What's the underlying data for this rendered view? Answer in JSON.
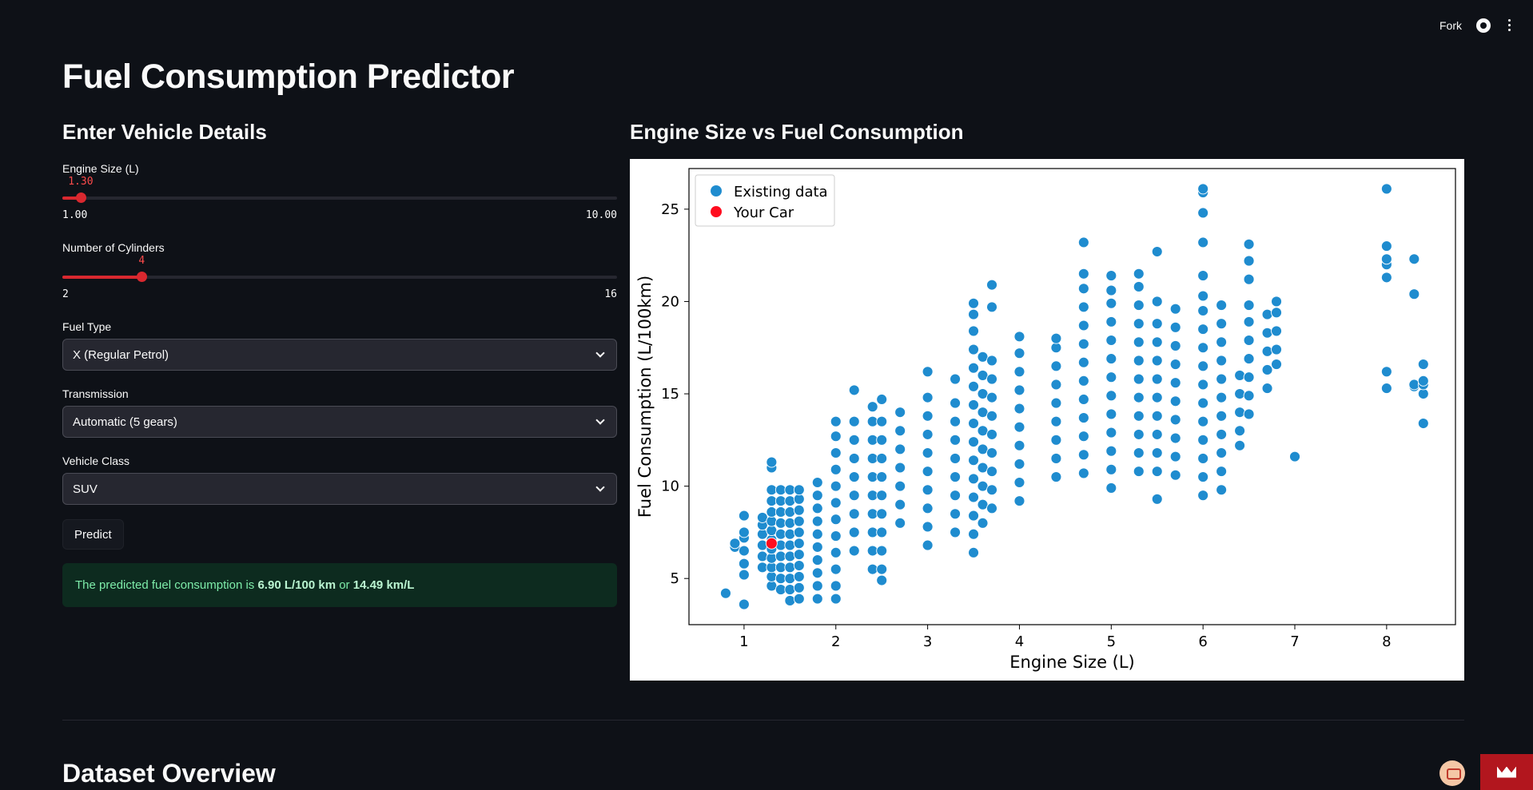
{
  "header": {
    "fork_label": "Fork",
    "github_icon": "github-icon",
    "menu_icon": "kebab-menu-icon"
  },
  "page": {
    "title": "Fuel Consumption Predictor",
    "left_heading": "Enter Vehicle Details",
    "right_heading": "Engine Size vs Fuel Consumption",
    "bottom_heading": "Dataset Overview"
  },
  "form": {
    "engine_size": {
      "label": "Engine Size (L)",
      "value": "1.30",
      "min": "1.00",
      "max": "10.00",
      "fraction": 0.033
    },
    "cylinders": {
      "label": "Number of Cylinders",
      "value": "4",
      "min": "2",
      "max": "16",
      "fraction": 0.143
    },
    "fuel_type": {
      "label": "Fuel Type",
      "value": "X (Regular Petrol)"
    },
    "transmission": {
      "label": "Transmission",
      "value": "Automatic (5 gears)"
    },
    "vehicle_class": {
      "label": "Vehicle Class",
      "value": "SUV"
    },
    "predict_label": "Predict"
  },
  "result": {
    "prefix": "The predicted fuel consumption is ",
    "l100km": "6.90 L/100 km",
    "middle": " or ",
    "kml": "14.49 km/L"
  },
  "colors": {
    "accent": "#d9282f",
    "existing": "#1f8ccf",
    "your_car": "#ff0d1f"
  },
  "chart_data": {
    "type": "scatter",
    "title": "",
    "xlabel": "Engine Size (L)",
    "ylabel": "Fuel Consumption (L/100km)",
    "xlim": [
      0.4,
      8.75
    ],
    "ylim": [
      2.5,
      27.2
    ],
    "xticks": [
      1,
      2,
      3,
      4,
      5,
      6,
      7,
      8
    ],
    "yticks": [
      5,
      10,
      15,
      20,
      25
    ],
    "legend_position": "top-left",
    "series": [
      {
        "name": "Existing data",
        "color": "#1f8ccf",
        "clusters": [
          {
            "x": 0.8,
            "y": [
              4.2
            ]
          },
          {
            "x": 0.9,
            "y": [
              6.7,
              6.9
            ]
          },
          {
            "x": 1.0,
            "y": [
              3.6,
              5.2,
              5.8,
              6.5,
              7.2,
              7.5,
              8.4
            ]
          },
          {
            "x": 1.2,
            "y": [
              5.6,
              6.2,
              6.8,
              7.4,
              7.9,
              8.3
            ]
          },
          {
            "x": 1.3,
            "y": [
              4.6,
              5.1,
              5.6,
              6.1,
              6.6,
              7.1,
              7.6,
              8.1,
              8.6,
              9.2,
              9.8,
              11.0,
              11.3
            ]
          },
          {
            "x": 1.4,
            "y": [
              4.4,
              5.0,
              5.6,
              6.2,
              6.8,
              7.4,
              8.0,
              8.6,
              9.2,
              9.8
            ]
          },
          {
            "x": 1.5,
            "y": [
              3.8,
              4.4,
              5.0,
              5.6,
              6.2,
              6.8,
              7.4,
              8.0,
              8.6,
              9.2,
              9.8
            ]
          },
          {
            "x": 1.6,
            "y": [
              3.9,
              4.5,
              5.1,
              5.7,
              6.3,
              6.9,
              7.5,
              8.1,
              8.7,
              9.3,
              9.8
            ]
          },
          {
            "x": 1.8,
            "y": [
              3.9,
              4.6,
              5.3,
              6.0,
              6.7,
              7.4,
              8.1,
              8.8,
              9.5,
              10.2
            ]
          },
          {
            "x": 2.0,
            "y": [
              3.9,
              4.6,
              5.5,
              6.4,
              7.3,
              8.2,
              9.1,
              10.0,
              10.9,
              11.8,
              12.7,
              13.5
            ]
          },
          {
            "x": 2.2,
            "y": [
              6.5,
              7.5,
              8.5,
              9.5,
              10.5,
              11.5,
              12.5,
              13.5,
              15.2
            ]
          },
          {
            "x": 2.4,
            "y": [
              5.5,
              6.5,
              7.5,
              8.5,
              9.5,
              10.5,
              11.5,
              12.5,
              13.5,
              14.3
            ]
          },
          {
            "x": 2.5,
            "y": [
              4.9,
              5.5,
              6.5,
              7.5,
              8.5,
              9.5,
              10.5,
              11.5,
              12.5,
              13.5,
              14.7
            ]
          },
          {
            "x": 2.7,
            "y": [
              8.0,
              9.0,
              10.0,
              11.0,
              12.0,
              13.0,
              14.0
            ]
          },
          {
            "x": 3.0,
            "y": [
              6.8,
              7.8,
              8.8,
              9.8,
              10.8,
              11.8,
              12.8,
              13.8,
              14.8,
              16.2
            ]
          },
          {
            "x": 3.3,
            "y": [
              7.5,
              8.5,
              9.5,
              10.5,
              11.5,
              12.5,
              13.5,
              14.5,
              15.8
            ]
          },
          {
            "x": 3.5,
            "y": [
              6.4,
              7.4,
              8.4,
              9.4,
              10.4,
              11.4,
              12.4,
              13.4,
              14.4,
              15.4,
              16.4,
              17.4,
              18.4,
              19.3,
              19.9
            ]
          },
          {
            "x": 3.6,
            "y": [
              8.0,
              9.0,
              10.0,
              11.0,
              12.0,
              13.0,
              14.0,
              15.0,
              16.0,
              17.0
            ]
          },
          {
            "x": 3.7,
            "y": [
              8.8,
              9.8,
              10.8,
              11.8,
              12.8,
              13.8,
              14.8,
              15.8,
              16.8,
              19.7,
              20.9
            ]
          },
          {
            "x": 4.0,
            "y": [
              9.2,
              10.2,
              11.2,
              12.2,
              13.2,
              14.2,
              15.2,
              16.2,
              17.2,
              18.1
            ]
          },
          {
            "x": 4.4,
            "y": [
              10.5,
              11.5,
              12.5,
              13.5,
              14.5,
              15.5,
              16.5,
              17.5,
              18.0
            ]
          },
          {
            "x": 4.7,
            "y": [
              10.7,
              11.7,
              12.7,
              13.7,
              14.7,
              15.7,
              16.7,
              17.7,
              18.7,
              19.7,
              20.7,
              21.5,
              23.2
            ]
          },
          {
            "x": 5.0,
            "y": [
              9.9,
              10.9,
              11.9,
              12.9,
              13.9,
              14.9,
              15.9,
              16.9,
              17.9,
              18.9,
              19.9,
              20.6,
              21.4
            ]
          },
          {
            "x": 5.3,
            "y": [
              10.8,
              11.8,
              12.8,
              13.8,
              14.8,
              15.8,
              16.8,
              17.8,
              18.8,
              19.8,
              20.8,
              21.5
            ]
          },
          {
            "x": 5.5,
            "y": [
              9.3,
              10.8,
              11.8,
              12.8,
              13.8,
              14.8,
              15.8,
              16.8,
              17.8,
              18.8,
              20.0,
              22.7
            ]
          },
          {
            "x": 5.7,
            "y": [
              10.6,
              11.6,
              12.6,
              13.6,
              14.6,
              15.6,
              16.6,
              17.6,
              18.6,
              19.6
            ]
          },
          {
            "x": 6.0,
            "y": [
              9.5,
              10.5,
              11.5,
              12.5,
              13.5,
              14.5,
              15.5,
              16.5,
              17.5,
              18.5,
              19.5,
              20.3,
              21.4,
              23.2,
              24.8,
              25.9,
              26.1
            ]
          },
          {
            "x": 6.2,
            "y": [
              9.8,
              10.8,
              11.8,
              12.8,
              13.8,
              14.8,
              15.8,
              16.8,
              17.8,
              18.8,
              19.8
            ]
          },
          {
            "x": 6.4,
            "y": [
              12.2,
              13.0,
              14.0,
              15.0,
              16.0
            ]
          },
          {
            "x": 6.5,
            "y": [
              13.9,
              14.9,
              15.9,
              16.9,
              17.9,
              18.9,
              19.8,
              21.2,
              22.2,
              23.1
            ]
          },
          {
            "x": 6.7,
            "y": [
              15.3,
              16.3,
              17.3,
              18.3,
              19.3
            ]
          },
          {
            "x": 6.8,
            "y": [
              16.6,
              17.4,
              18.4,
              19.4,
              20.0
            ]
          },
          {
            "x": 7.0,
            "y": [
              11.6
            ]
          },
          {
            "x": 8.0,
            "y": [
              15.3,
              16.2,
              21.3,
              22.0,
              22.3,
              23.0,
              26.1
            ]
          },
          {
            "x": 8.3,
            "y": [
              15.4,
              15.5,
              20.4,
              22.3
            ]
          },
          {
            "x": 8.4,
            "y": [
              13.4,
              15.0,
              15.5,
              15.7,
              16.6
            ]
          }
        ]
      },
      {
        "name": "Your Car",
        "color": "#ff0d1f",
        "points": [
          {
            "x": 1.3,
            "y": 6.9
          }
        ]
      }
    ]
  }
}
